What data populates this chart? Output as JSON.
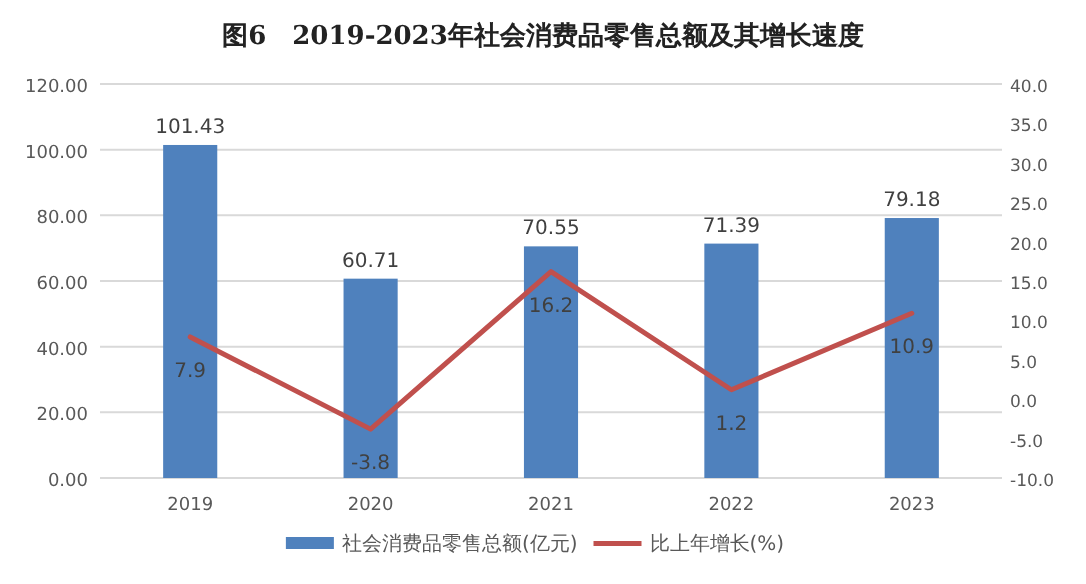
{
  "chart_data": {
    "type": "bar",
    "title": "图6　2019-2023年社会消费品零售总额及其增长速度",
    "categories": [
      "2019",
      "2020",
      "2021",
      "2022",
      "2023"
    ],
    "series": [
      {
        "name": "社会消费品零售总额(亿元)",
        "color": "#4f81bd",
        "values": [
          101.43,
          60.71,
          70.55,
          71.39,
          79.18
        ]
      },
      {
        "name": "比上年增长(%)",
        "type": "line",
        "axis": "y2",
        "color": "#c0504d",
        "values": [
          7.9,
          -3.8,
          16.2,
          1.2,
          10.9
        ]
      }
    ],
    "ylim": [
      0,
      120
    ],
    "yticks": [
      {
        "value": 0,
        "label": "0.00"
      },
      {
        "value": 20,
        "label": "20.00"
      },
      {
        "value": 40,
        "label": "40.00"
      },
      {
        "value": 60,
        "label": "60.00"
      },
      {
        "value": 80,
        "label": "80.00"
      },
      {
        "value": 100,
        "label": "100.00"
      },
      {
        "value": 120,
        "label": "120.00"
      }
    ],
    "y2lim": [
      -10,
      40
    ],
    "y2ticks": [
      {
        "value": -10,
        "label": "-10.0"
      },
      {
        "value": -5,
        "label": "-5.0"
      },
      {
        "value": 0,
        "label": "0.0"
      },
      {
        "value": 5,
        "label": "5.0"
      },
      {
        "value": 10,
        "label": "10.0"
      },
      {
        "value": 15,
        "label": "15.0"
      },
      {
        "value": 20,
        "label": "20.0"
      },
      {
        "value": 25,
        "label": "25.0"
      },
      {
        "value": 30,
        "label": "30.0"
      },
      {
        "value": 35,
        "label": "35.0"
      },
      {
        "value": 40,
        "label": "40.0"
      }
    ],
    "grid": "y",
    "legend": "bottom",
    "data_labels": true,
    "marker": "none",
    "line_style": "solid"
  }
}
